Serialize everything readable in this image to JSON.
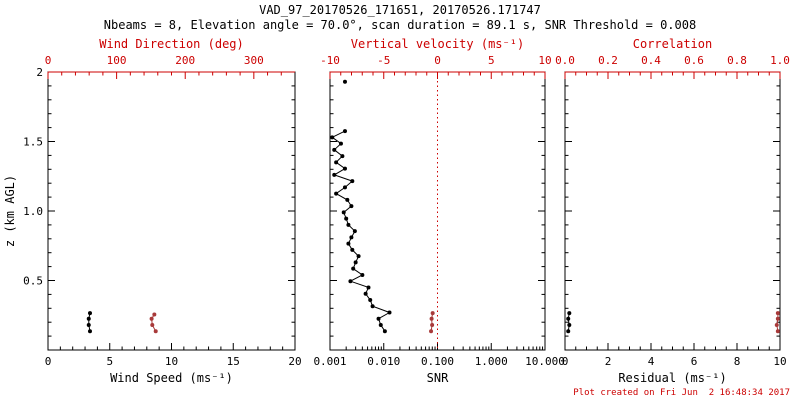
{
  "header": {
    "title": "VAD_97_20170526_171651, 20170526.171747",
    "subtitle": "Nbeams = 8, Elevation angle = 70.0°, scan duration = 89.1 s, SNR Threshold = 0.008"
  },
  "footer": {
    "created": "Plot created on Fri Jun  2 16:48:34 2017"
  },
  "colors": {
    "black": "#000000",
    "red_axis": "#cc0000",
    "red_marker": "#a83a3a",
    "background": "#ffffff"
  },
  "chart_data": {
    "type": "line",
    "title": "VAD_97_20170526_171651, 20170526.171747",
    "subtitle": "Nbeams = 8, Elevation angle = 70.0°, scan duration = 89.1 s, SNR Threshold = 0.008",
    "grid": false,
    "yaxis": {
      "title": "z (km AGL)",
      "min": 0,
      "max": 2,
      "major": [
        0.5,
        1.0,
        1.5,
        2.0
      ],
      "labels": [
        "0.5",
        "1.0",
        "1.5",
        "2"
      ],
      "minor_step": 0.1
    },
    "panels": [
      {
        "name": "wind-panel",
        "bottom_axis": {
          "scale": "linear",
          "min": 0,
          "max": 20,
          "major": [
            0,
            5,
            10,
            15,
            20
          ],
          "labels": [
            "0",
            "5",
            "10",
            "15",
            "20"
          ],
          "minor_step": 1,
          "title": "Wind Speed (ms⁻¹)"
        },
        "top_axis": {
          "scale": "linear",
          "min": 0,
          "max": 360,
          "major": [
            0,
            100,
            200,
            300
          ],
          "labels": [
            "0",
            "100",
            "200",
            "300"
          ],
          "minor_step": 20,
          "title": "Wind Direction (deg)"
        },
        "series": [
          {
            "name": "wind_speed",
            "axis": "bottom",
            "color": "black",
            "line": true,
            "points": [
              [
                3.4,
                0.135
              ],
              [
                3.3,
                0.18
              ],
              [
                3.3,
                0.225
              ],
              [
                3.4,
                0.265
              ]
            ]
          },
          {
            "name": "wind_direction",
            "axis": "top",
            "color": "red",
            "line": true,
            "points": [
              [
                157,
                0.135
              ],
              [
                152,
                0.18
              ],
              [
                151,
                0.225
              ],
              [
                155,
                0.255
              ]
            ]
          }
        ]
      },
      {
        "name": "snr-panel",
        "bottom_axis": {
          "scale": "log",
          "min": 0.001,
          "max": 10,
          "major": [
            0.001,
            0.01,
            0.1,
            1,
            10
          ],
          "labels": [
            "0.001",
            "0.010",
            "0.100",
            "1.000",
            "10.000"
          ],
          "title": "SNR"
        },
        "top_axis": {
          "scale": "linear",
          "min": -10,
          "max": 10,
          "major": [
            -10,
            -5,
            0,
            5,
            10
          ],
          "labels": [
            "-10",
            "-5",
            "0",
            "5",
            "10"
          ],
          "minor_step": 1,
          "title": "Vertical velocity (ms⁻¹)"
        },
        "refline": {
          "axis": "top",
          "value": 0,
          "style": "dotted",
          "color": "#cc0000"
        },
        "series": [
          {
            "name": "snr_profile",
            "axis": "bottom",
            "color": "black",
            "line": true,
            "points": [
              [
                0.0105,
                0.135
              ],
              [
                0.0088,
                0.18
              ],
              [
                0.008,
                0.225
              ],
              [
                0.0128,
                0.27
              ],
              [
                0.0062,
                0.315
              ],
              [
                0.0056,
                0.36
              ],
              [
                0.0046,
                0.405
              ],
              [
                0.0052,
                0.45
              ],
              [
                0.0024,
                0.495
              ],
              [
                0.004,
                0.54
              ],
              [
                0.0027,
                0.585
              ],
              [
                0.003,
                0.63
              ],
              [
                0.0034,
                0.675
              ],
              [
                0.0026,
                0.72
              ],
              [
                0.0022,
                0.765
              ],
              [
                0.0025,
                0.81
              ],
              [
                0.0029,
                0.855
              ],
              [
                0.0022,
                0.9
              ],
              [
                0.002,
                0.945
              ],
              [
                0.0018,
                0.99
              ],
              [
                0.0025,
                1.035
              ],
              [
                0.0021,
                1.08
              ],
              [
                0.0013,
                1.125
              ],
              [
                0.0019,
                1.17
              ],
              [
                0.0026,
                1.215
              ],
              [
                0.0012,
                1.26
              ],
              [
                0.0019,
                1.305
              ],
              [
                0.0013,
                1.35
              ],
              [
                0.0017,
                1.395
              ],
              [
                0.0012,
                1.44
              ],
              [
                0.0016,
                1.485
              ],
              [
                0.0011,
                1.53
              ],
              [
                0.0019,
                1.575
              ]
            ]
          },
          {
            "name": "snr_upper_gate",
            "axis": "bottom",
            "color": "black",
            "line": false,
            "points": [
              [
                0.0019,
                1.93
              ]
            ]
          },
          {
            "name": "vertical_velocity",
            "axis": "top",
            "color": "red",
            "line": true,
            "points": [
              [
                -0.6,
                0.135
              ],
              [
                -0.5,
                0.18
              ],
              [
                -0.55,
                0.225
              ],
              [
                -0.45,
                0.265
              ]
            ]
          }
        ]
      },
      {
        "name": "residual-panel",
        "bottom_axis": {
          "scale": "linear",
          "min": 0,
          "max": 10,
          "major": [
            0,
            2,
            4,
            6,
            8,
            10
          ],
          "labels": [
            "0",
            "2",
            "4",
            "6",
            "8",
            "10"
          ],
          "minor_step": 0.5,
          "title": "Residual (ms⁻¹)"
        },
        "top_axis": {
          "scale": "linear",
          "min": 0,
          "max": 1,
          "major": [
            0,
            0.2,
            0.4,
            0.6,
            0.8,
            1.0
          ],
          "labels": [
            "0.0",
            "0.2",
            "0.4",
            "0.6",
            "0.8",
            "1.0"
          ],
          "minor_step": 0.05,
          "title": "Correlation"
        },
        "series": [
          {
            "name": "residual",
            "axis": "bottom",
            "color": "black",
            "line": true,
            "points": [
              [
                0.15,
                0.135
              ],
              [
                0.2,
                0.18
              ],
              [
                0.15,
                0.225
              ],
              [
                0.2,
                0.265
              ]
            ]
          },
          {
            "name": "correlation",
            "axis": "top",
            "color": "red",
            "line": true,
            "points": [
              [
                0.99,
                0.135
              ],
              [
                0.985,
                0.18
              ],
              [
                0.99,
                0.225
              ],
              [
                0.99,
                0.265
              ]
            ]
          }
        ]
      }
    ]
  }
}
